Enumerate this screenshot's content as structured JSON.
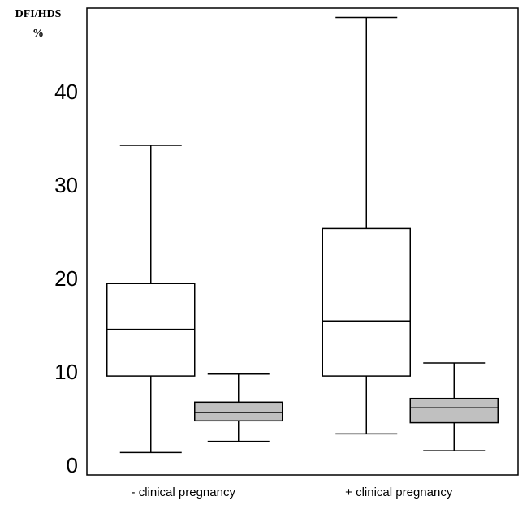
{
  "chart_data": {
    "type": "box",
    "y_label": [
      "DFI/HDS",
      "%"
    ],
    "categories": [
      "- clinical pregnancy",
      "+ clinical pregnancy"
    ],
    "series": [
      {
        "color": "#ffffff",
        "min": [
          2.4,
          4.4
        ],
        "q1": [
          10.6,
          10.6
        ],
        "median": [
          15.6,
          16.5
        ],
        "q3": [
          20.5,
          26.4
        ],
        "max": [
          35.3,
          49.0
        ]
      },
      {
        "color": "#c0c0c0",
        "min": [
          3.6,
          2.6
        ],
        "q1": [
          5.8,
          5.6
        ],
        "median": [
          6.7,
          7.2
        ],
        "q3": [
          7.8,
          8.2
        ],
        "max": [
          10.8,
          12.0
        ]
      }
    ],
    "ylim": [
      0,
      50
    ],
    "yticks": [
      0,
      10,
      20,
      30,
      40
    ]
  }
}
